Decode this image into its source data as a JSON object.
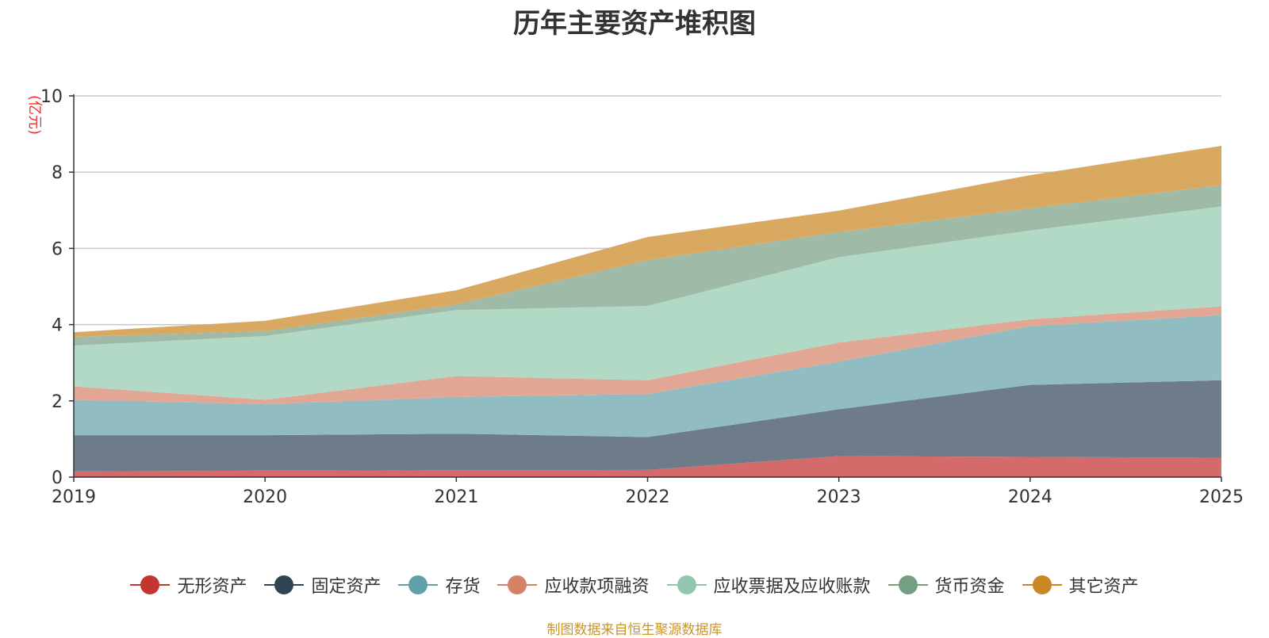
{
  "chart_data": {
    "type": "area",
    "stacked": true,
    "title": "历年主要资产堆积图",
    "ylabel": "(亿元)",
    "xlabel": "",
    "x": [
      "2019",
      "2020",
      "2021",
      "2022",
      "2023",
      "2024",
      "2025"
    ],
    "ylim": [
      0,
      10
    ],
    "yticks": [
      0,
      2,
      4,
      6,
      8,
      10
    ],
    "grid": true,
    "legend_position": "bottom",
    "series": [
      {
        "name": "无形资产",
        "color": "#c23531",
        "area_color": "#d46b6a",
        "values": [
          0.15,
          0.17,
          0.18,
          0.19,
          0.55,
          0.53,
          0.51
        ]
      },
      {
        "name": "固定资产",
        "color": "#2f4554",
        "area_color": "#6d7c88",
        "values": [
          0.95,
          0.93,
          0.96,
          0.86,
          1.23,
          1.89,
          2.03
        ]
      },
      {
        "name": "存货",
        "color": "#61a0a8",
        "area_color": "#90bcc2",
        "values": [
          0.93,
          0.81,
          0.96,
          1.13,
          1.25,
          1.54,
          1.71
        ]
      },
      {
        "name": "应收款项融资",
        "color": "#d48265",
        "area_color": "#e2a794",
        "values": [
          0.35,
          0.12,
          0.55,
          0.36,
          0.5,
          0.18,
          0.23
        ]
      },
      {
        "name": "应收票据及应收账款",
        "color": "#91c7ae",
        "area_color": "#b2d9c6",
        "values": [
          1.07,
          1.67,
          1.73,
          1.95,
          2.24,
          2.33,
          2.62
        ]
      },
      {
        "name": "货币资金",
        "color": "#749f83",
        "area_color": "#9fbba7",
        "values": [
          0.23,
          0.13,
          0.15,
          1.2,
          0.66,
          0.58,
          0.56
        ]
      },
      {
        "name": "其它资产",
        "color": "#ca8622",
        "area_color": "#d9a861",
        "values": [
          0.12,
          0.27,
          0.37,
          0.61,
          0.56,
          0.87,
          1.03
        ]
      }
    ]
  },
  "source_note": "制图数据来自恒生聚源数据库"
}
